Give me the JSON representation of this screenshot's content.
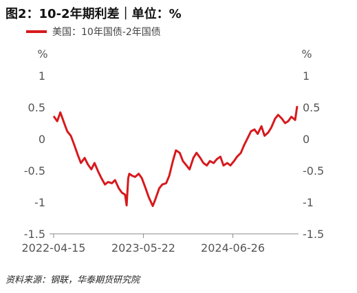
{
  "title": "图2：10-2年期利差｜单位：%",
  "source": "资料来源：钢联，华泰期货研究院",
  "chart_data": {
    "type": "line",
    "left_axis_unit": "%",
    "right_axis_unit": "%",
    "yticks": [
      "1",
      "0.5",
      "0",
      "-0.5",
      "-1",
      "-1.5"
    ],
    "ylim": [
      -1.5,
      1
    ],
    "xticks": [
      "2022-04-15",
      "2023-05-22",
      "2024-06-26"
    ],
    "series": [
      {
        "name": "美国：10年国债-2年国债",
        "color": "#d7191c",
        "x": [
          "2022-04-15",
          "2022-05-01",
          "2022-05-15",
          "2022-06-01",
          "2022-06-15",
          "2022-07-01",
          "2022-07-15",
          "2022-08-01",
          "2022-08-15",
          "2022-09-01",
          "2022-09-15",
          "2022-10-01",
          "2022-10-15",
          "2022-11-01",
          "2022-11-15",
          "2022-12-01",
          "2022-12-15",
          "2023-01-01",
          "2023-01-15",
          "2023-02-01",
          "2023-02-15",
          "2023-03-01",
          "2023-03-08",
          "2023-03-15",
          "2023-03-20",
          "2023-04-01",
          "2023-04-15",
          "2023-05-01",
          "2023-05-15",
          "2023-06-01",
          "2023-06-15",
          "2023-07-03",
          "2023-07-15",
          "2023-08-01",
          "2023-08-15",
          "2023-09-01",
          "2023-09-15",
          "2023-10-01",
          "2023-10-15",
          "2023-11-01",
          "2023-11-15",
          "2023-12-01",
          "2023-12-15",
          "2024-01-01",
          "2024-01-15",
          "2024-02-01",
          "2024-02-15",
          "2024-03-01",
          "2024-03-15",
          "2024-04-01",
          "2024-04-15",
          "2024-05-01",
          "2024-05-15",
          "2024-06-01",
          "2024-06-15",
          "2024-07-01",
          "2024-07-15",
          "2024-08-01",
          "2024-08-15",
          "2024-09-01",
          "2024-09-15",
          "2024-10-01",
          "2024-10-15",
          "2024-11-01",
          "2024-11-15",
          "2024-12-01",
          "2024-12-15",
          "2025-01-01",
          "2025-01-15",
          "2025-02-01",
          "2025-02-15",
          "2025-03-01",
          "2025-03-15",
          "2025-04-01",
          "2025-04-10"
        ],
        "values": [
          0.36,
          0.28,
          0.42,
          0.25,
          0.12,
          0.05,
          -0.08,
          -0.25,
          -0.38,
          -0.3,
          -0.4,
          -0.48,
          -0.38,
          -0.52,
          -0.62,
          -0.72,
          -0.68,
          -0.7,
          -0.65,
          -0.78,
          -0.85,
          -0.88,
          -1.05,
          -0.62,
          -0.55,
          -0.58,
          -0.6,
          -0.55,
          -0.62,
          -0.78,
          -0.92,
          -1.06,
          -0.95,
          -0.78,
          -0.72,
          -0.7,
          -0.58,
          -0.35,
          -0.18,
          -0.22,
          -0.35,
          -0.42,
          -0.48,
          -0.3,
          -0.22,
          -0.3,
          -0.38,
          -0.42,
          -0.35,
          -0.38,
          -0.32,
          -0.28,
          -0.42,
          -0.38,
          -0.42,
          -0.35,
          -0.28,
          -0.22,
          -0.1,
          0.02,
          0.12,
          0.15,
          0.08,
          0.2,
          0.05,
          0.1,
          0.18,
          0.32,
          0.38,
          0.32,
          0.25,
          0.28,
          0.35,
          0.3,
          0.52
        ]
      }
    ]
  }
}
